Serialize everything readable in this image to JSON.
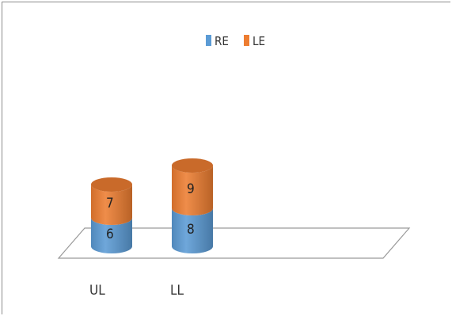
{
  "chart_data": {
    "type": "bar",
    "stacked": true,
    "style": "3d-cylinder",
    "title": "",
    "xlabel": "",
    "ylabel": "",
    "categories": [
      "UL",
      "LL"
    ],
    "series": [
      {
        "name": "RE",
        "values": [
          6,
          8
        ],
        "color": "#5b9bd5"
      },
      {
        "name": "LE",
        "values": [
          7,
          9
        ],
        "color": "#ed7d31"
      }
    ],
    "legend": "top",
    "grid": false,
    "data_labels": true
  }
}
